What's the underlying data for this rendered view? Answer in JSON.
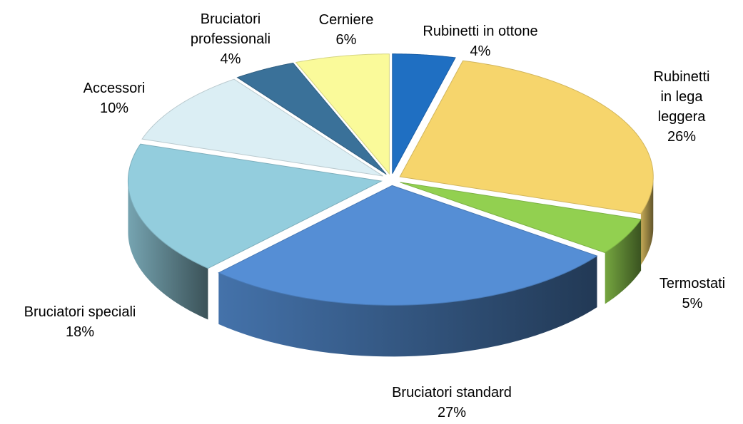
{
  "chart_data": {
    "type": "pie3d",
    "categories": [
      "Rubinetti in ottone",
      "Rubinetti in lega leggera",
      "Termostati",
      "Bruciatori standard",
      "Bruciatori speciali",
      "Accessori",
      "Bruciatori professionali",
      "Cerniere"
    ],
    "values": [
      4,
      26,
      5,
      27,
      18,
      10,
      4,
      6
    ],
    "value_labels": [
      "4%",
      "26%",
      "5%",
      "27%",
      "18%",
      "10%",
      "4%",
      "6%"
    ],
    "colors": [
      "#1f6fc2",
      "#f6d56c",
      "#92d050",
      "#558ed5",
      "#93cddd",
      "#dbeef4",
      "#3a7199",
      "#fafa9a"
    ]
  }
}
